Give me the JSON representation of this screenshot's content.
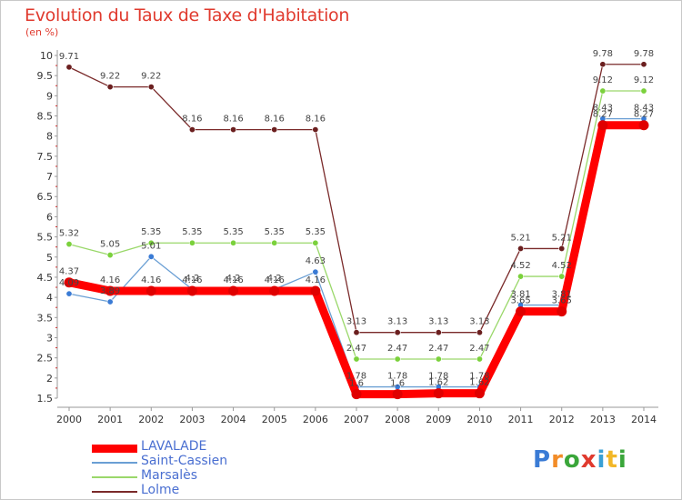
{
  "header": {
    "title": "Evolution du Taux de Taxe d'Habitation",
    "unit": "(en %)"
  },
  "logo": {
    "parts": [
      "P",
      "r",
      "o",
      "x",
      "i",
      "t",
      "i"
    ],
    "colors": [
      "#3a7bd5",
      "#f28c28",
      "#3aa63a",
      "#e03a2e",
      "#3aa0d5",
      "#f2b728",
      "#3aa63a"
    ]
  },
  "chart_data": {
    "type": "line",
    "title": "Evolution du Taux de Taxe d'Habitation",
    "ylabel": "(en %)",
    "xlabel": "",
    "categories": [
      "2000",
      "2001",
      "2002",
      "2003",
      "2004",
      "2005",
      "2006",
      "2007",
      "2008",
      "2009",
      "2010",
      "2011",
      "2012",
      "2013",
      "2014"
    ],
    "ylim": [
      1.5,
      10
    ],
    "yticks": [
      "1.5",
      "2",
      "2.5",
      "3",
      "3.5",
      "4",
      "4.5",
      "5",
      "5.5",
      "6",
      "6.5",
      "7",
      "7.5",
      "8",
      "8.5",
      "9",
      "9.5",
      "10"
    ],
    "grid": false,
    "legend_position": "bottom-left",
    "series": [
      {
        "name": "LAVALADE",
        "color": "#ff0000",
        "marker": "#e00000",
        "width": 9,
        "values": [
          4.37,
          4.16,
          4.16,
          4.16,
          4.16,
          4.16,
          4.16,
          1.6,
          1.6,
          1.62,
          1.62,
          3.65,
          3.65,
          8.27,
          8.27
        ]
      },
      {
        "name": "Saint-Cassien",
        "color": "#6a9fd4",
        "marker": "#3a7bd5",
        "width": 1.3,
        "values": [
          4.09,
          3.89,
          5.01,
          4.2,
          4.2,
          4.2,
          4.63,
          1.78,
          1.78,
          1.78,
          1.78,
          3.81,
          3.81,
          8.43,
          8.43
        ]
      },
      {
        "name": "Marsalès",
        "color": "#9ad86a",
        "marker": "#7bd13c",
        "width": 1.3,
        "values": [
          5.32,
          5.05,
          5.35,
          5.35,
          5.35,
          5.35,
          5.35,
          2.47,
          2.47,
          2.47,
          2.47,
          4.52,
          4.52,
          9.12,
          9.12
        ]
      },
      {
        "name": "Lolme",
        "color": "#7a2a2a",
        "marker": "#6b1f1f",
        "width": 1.3,
        "values": [
          9.71,
          9.22,
          9.22,
          8.16,
          8.16,
          8.16,
          8.16,
          3.13,
          3.13,
          3.13,
          3.13,
          5.21,
          5.21,
          9.78,
          9.78
        ]
      }
    ],
    "data_labels": [
      [
        "4.37",
        "4.16",
        "4.16",
        "4.16",
        "4.16",
        "4.16",
        "4.16",
        "1.6",
        "1.6",
        "1.62",
        "1.62",
        "3.65",
        "3.65",
        "8.27",
        "8.27"
      ],
      [
        "4.09",
        "3.89",
        "5.01",
        "4.2",
        "4.2",
        "4.2",
        "4.63",
        "1.78",
        "1.78",
        "1.78",
        "1.78",
        "3.81",
        "3.81",
        "8.43",
        "8.43"
      ],
      [
        "5.32",
        "5.05",
        "5.35",
        "5.35",
        "5.35",
        "5.35",
        "5.35",
        "2.47",
        "2.47",
        "2.47",
        "2.47",
        "4.52",
        "4.52",
        "9.12",
        "9.12"
      ],
      [
        "9.71",
        "9.22",
        "9.22",
        "8.16",
        "8.16",
        "8.16",
        "8.16",
        "3.13",
        "3.13",
        "3.13",
        "3.13",
        "5.21",
        "5.21",
        "9.78",
        "9.78"
      ]
    ]
  }
}
